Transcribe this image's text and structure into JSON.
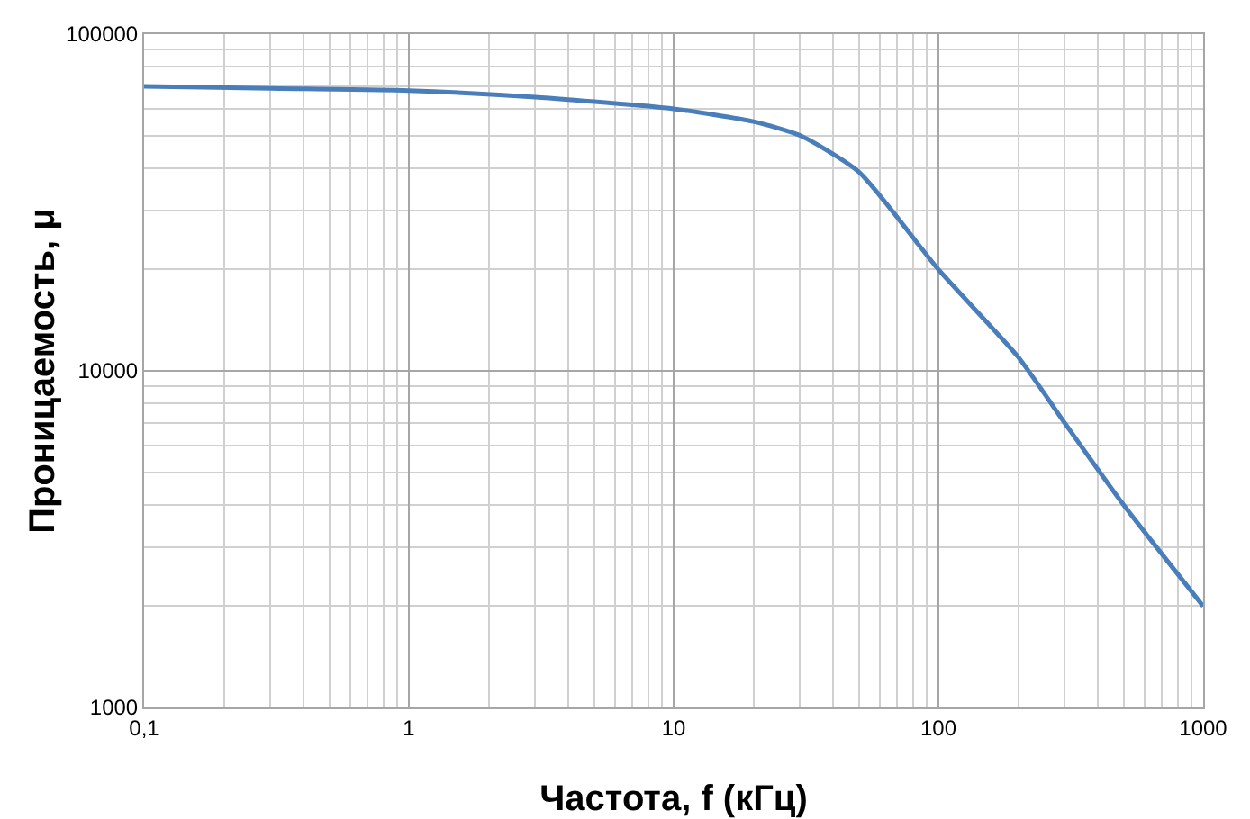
{
  "chart_data": {
    "type": "line",
    "xlabel": "Частота, f (кГц)",
    "ylabel": "Проницаемость, μ",
    "log": "xy",
    "grid": true,
    "marker": "none",
    "line_style": "solid",
    "x": [
      0.1,
      0.3,
      1,
      3,
      10,
      20,
      30,
      50,
      100,
      200,
      300,
      500,
      1000
    ],
    "series": [
      {
        "color": "#4a7ebb",
        "values": [
          70000,
          69000,
          68000,
          65000,
          60000,
          55000,
          50000,
          39000,
          20000,
          11000,
          7000,
          4000,
          2000
        ]
      }
    ],
    "xlim": [
      0.1,
      1000
    ],
    "xticks": [
      {
        "value": 0.1,
        "label": "0,1"
      },
      1,
      10,
      100,
      1000
    ],
    "ylim": [
      1000,
      100000
    ],
    "yticks": [
      1000,
      10000,
      100000
    ]
  }
}
